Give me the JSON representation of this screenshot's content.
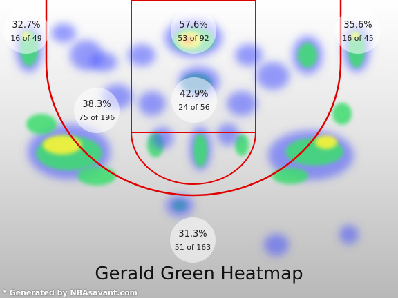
{
  "title": "Gerald Green Heatmap",
  "credit": "* Generated by NBAsavant.com",
  "colors": {
    "court_lines": "#e00000",
    "zone_circle": "#ffffff"
  },
  "chart_data": {
    "type": "heatmap",
    "title": "Gerald Green Heatmap",
    "zones": [
      {
        "id": "left-corner-3",
        "pct": "32.7%",
        "made": 16,
        "attempts": 49,
        "label": "16 of 49"
      },
      {
        "id": "restricted-area",
        "pct": "57.6%",
        "made": 53,
        "attempts": 92,
        "label": "53 of 92"
      },
      {
        "id": "right-corner-3",
        "pct": "35.6%",
        "made": 16,
        "attempts": 45,
        "label": "16 of 45"
      },
      {
        "id": "left-midrange",
        "pct": "38.3%",
        "made": 75,
        "attempts": 196,
        "label": "75 of 196"
      },
      {
        "id": "paint-non-ra",
        "pct": "42.9%",
        "made": 24,
        "attempts": 56,
        "label": "24 of 56"
      },
      {
        "id": "above-break-3",
        "pct": "31.3%",
        "made": 51,
        "attempts": 163,
        "label": "51 of 163"
      }
    ]
  }
}
